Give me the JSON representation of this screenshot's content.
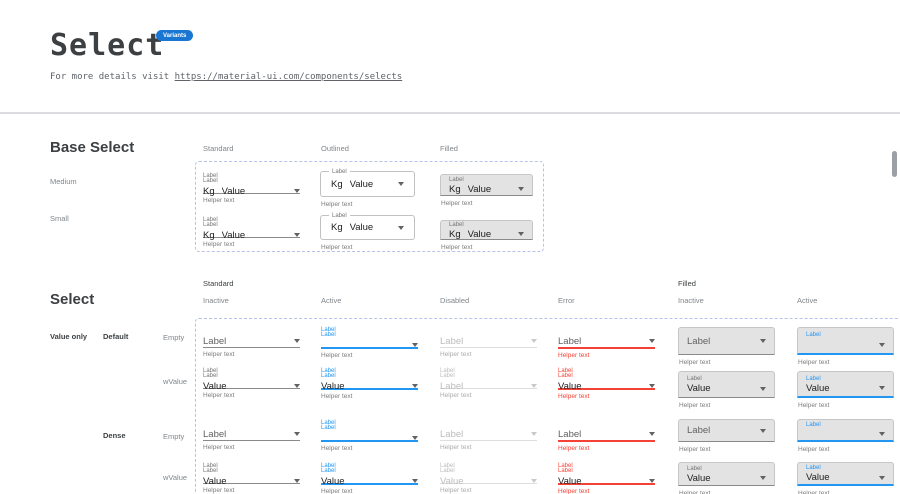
{
  "page": {
    "title": "Select",
    "badge": "Variants",
    "subtitle_prefix": "For more details visit ",
    "subtitle_link": "https://material-ui.com/components/selects"
  },
  "colors": {
    "accent": "#2196f3",
    "error": "#f44336",
    "badge_bg": "#1976d2",
    "dashed_border": "#b9c0ea",
    "filled_bg": "#e3e3e3"
  },
  "base_section": {
    "heading": "Base Select",
    "column_headers": [
      "Standard",
      "Outlined",
      "Filled"
    ],
    "row_labels": [
      "Medium",
      "Small"
    ],
    "cells": [
      {
        "variant": "standard",
        "state": "inactive",
        "label": "Label",
        "adornment": "Kg",
        "value": "Value",
        "helper": "Helper text"
      },
      {
        "variant": "outlined",
        "state": "inactive",
        "label": "Label",
        "adornment": "Kg",
        "value": "Value",
        "helper": "Helper text"
      },
      {
        "variant": "filled",
        "state": "inactive",
        "label": "Label",
        "adornment": "Kg",
        "value": "Value",
        "helper": "Helper text"
      },
      {
        "variant": "standard",
        "state": "inactive",
        "label": "Label",
        "adornment": "Kg",
        "value": "Value",
        "helper": "Helper text"
      },
      {
        "variant": "outlined",
        "state": "inactive",
        "label": "Label",
        "adornment": "Kg",
        "value": "Value",
        "helper": "Helper text"
      },
      {
        "variant": "filled",
        "state": "inactive",
        "label": "Label",
        "adornment": "Kg",
        "value": "Value",
        "helper": "Helper text"
      }
    ]
  },
  "select_section": {
    "heading": "Select",
    "group_headers": [
      "Standard",
      "Filled"
    ],
    "state_headers": [
      "Inactive",
      "Active",
      "Disabled",
      "Error",
      "Inactive",
      "Active"
    ],
    "row_group_labels": [
      "Value only",
      "Default",
      "Dense"
    ],
    "row_labels": [
      "Empty",
      "wValue",
      "Empty",
      "wValue"
    ],
    "cells": [
      {
        "variant": "standard",
        "state": "inactive",
        "inline": "Label",
        "helper": "Helper text"
      },
      {
        "variant": "standard",
        "state": "active",
        "label": "Label",
        "helper": "Helper text"
      },
      {
        "variant": "standard",
        "state": "disabled",
        "inline": "Label",
        "helper": "Helper text"
      },
      {
        "variant": "standard",
        "state": "error",
        "inline": "Label",
        "helper": "Helper text"
      },
      {
        "variant": "filled",
        "state": "inactive",
        "inline": "Label",
        "helper": "Helper text"
      },
      {
        "variant": "filled",
        "state": "active",
        "label": "Label",
        "helper": "Helper text"
      },
      {
        "variant": "standard",
        "state": "inactive",
        "label": "Label",
        "value": "Value",
        "helper": "Helper text"
      },
      {
        "variant": "standard",
        "state": "active",
        "label": "Label",
        "value": "Value",
        "helper": "Helper text"
      },
      {
        "variant": "standard",
        "state": "disabled",
        "label": "Label",
        "value": "Label",
        "helper": "Helper text"
      },
      {
        "variant": "standard",
        "state": "error",
        "label": "Label",
        "value": "Value",
        "helper": "Helper text"
      },
      {
        "variant": "filled",
        "state": "inactive",
        "label": "Label",
        "value": "Value",
        "helper": "Helper text"
      },
      {
        "variant": "filled",
        "state": "active",
        "label": "Label",
        "value": "Value",
        "helper": "Helper text"
      },
      {
        "variant": "standard",
        "state": "inactive",
        "inline": "Label",
        "helper": "Helper text"
      },
      {
        "variant": "standard",
        "state": "active",
        "label": "Label",
        "helper": "Helper text"
      },
      {
        "variant": "standard",
        "state": "disabled",
        "inline": "Label",
        "helper": "Helper text"
      },
      {
        "variant": "standard",
        "state": "error",
        "inline": "Label",
        "helper": "Helper text"
      },
      {
        "variant": "filled",
        "state": "inactive",
        "inline": "Label",
        "helper": "Helper text"
      },
      {
        "variant": "filled",
        "state": "active",
        "label": "Label",
        "helper": "Helper text"
      },
      {
        "variant": "standard",
        "state": "inactive",
        "label": "Label",
        "value": "Value",
        "helper": "Helper text"
      },
      {
        "variant": "standard",
        "state": "active",
        "label": "Label",
        "value": "Value",
        "helper": "Helper text"
      },
      {
        "variant": "standard",
        "state": "disabled",
        "label": "Label",
        "value": "Value",
        "helper": "Helper text"
      },
      {
        "variant": "standard",
        "state": "error",
        "label": "Label",
        "value": "Value",
        "helper": "Helper text"
      },
      {
        "variant": "filled",
        "state": "inactive",
        "label": "Label",
        "value": "Value",
        "helper": "Helper text"
      },
      {
        "variant": "filled",
        "state": "active",
        "label": "Label",
        "value": "Value",
        "helper": "Helper text"
      }
    ]
  }
}
